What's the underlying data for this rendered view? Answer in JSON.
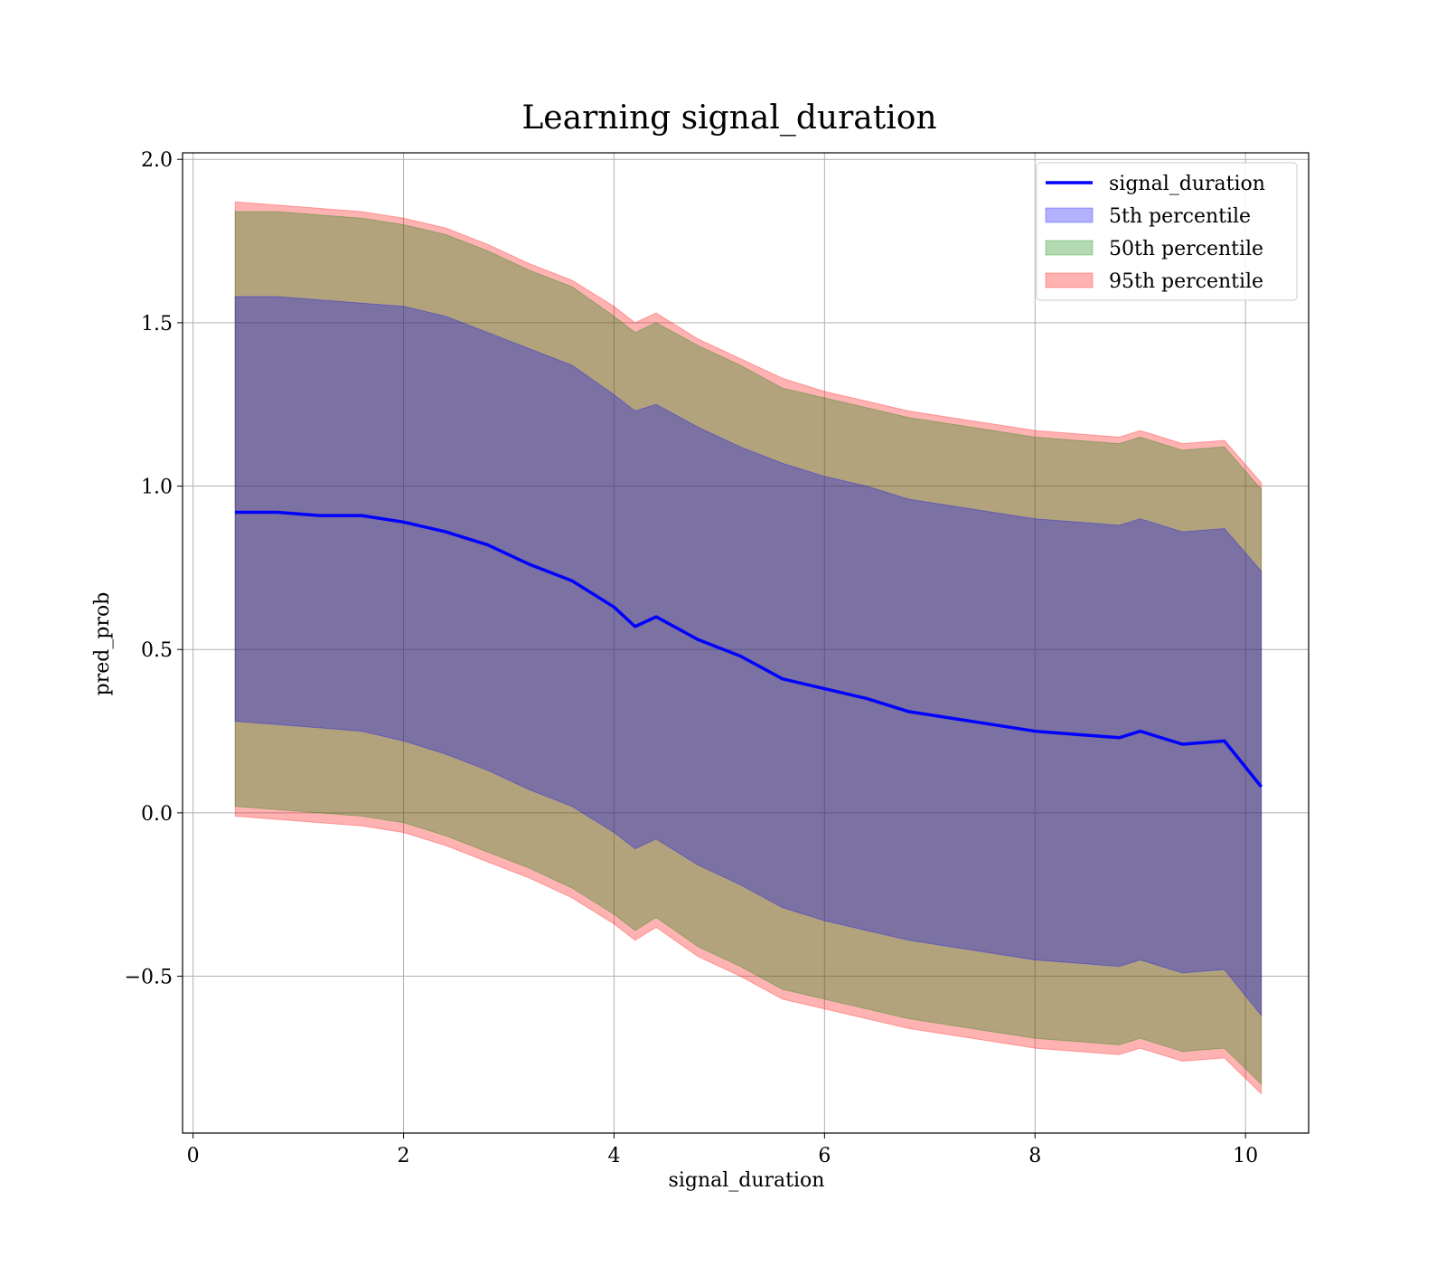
{
  "chart_data": {
    "type": "area",
    "title": "Learning signal_duration",
    "xlabel": "signal_duration",
    "ylabel": "pred_prob",
    "xlim": [
      -0.1,
      10.6
    ],
    "ylim": [
      -0.98,
      2.02
    ],
    "xticks": [
      0,
      2,
      4,
      6,
      8,
      10
    ],
    "xtick_labels": [
      "0",
      "2",
      "4",
      "6",
      "8",
      "10"
    ],
    "yticks": [
      -0.5,
      0.0,
      0.5,
      1.0,
      1.5,
      2.0
    ],
    "ytick_labels": [
      "−0.5",
      "0.0",
      "0.5",
      "1.0",
      "1.5",
      "2.0"
    ],
    "grid": true,
    "legend_position": "top-right",
    "x": [
      0.4,
      0.8,
      1.2,
      1.6,
      2.0,
      2.4,
      2.8,
      3.2,
      3.6,
      4.0,
      4.2,
      4.4,
      4.8,
      5.2,
      5.6,
      6.0,
      6.4,
      6.8,
      7.2,
      7.6,
      8.0,
      8.4,
      8.8,
      9.0,
      9.4,
      9.8,
      10.15
    ],
    "series": [
      {
        "name": "signal_duration",
        "kind": "line",
        "color": "#0000ff",
        "values": [
          0.92,
          0.92,
          0.91,
          0.91,
          0.89,
          0.86,
          0.82,
          0.76,
          0.71,
          0.63,
          0.57,
          0.6,
          0.53,
          0.48,
          0.41,
          0.38,
          0.35,
          0.31,
          0.29,
          0.27,
          0.25,
          0.24,
          0.23,
          0.25,
          0.21,
          0.22,
          0.08
        ]
      },
      {
        "name": "5th percentile",
        "kind": "band",
        "color": "#0000ff",
        "lower": [
          0.28,
          0.27,
          0.26,
          0.25,
          0.22,
          0.18,
          0.13,
          0.07,
          0.02,
          -0.06,
          -0.11,
          -0.08,
          -0.16,
          -0.22,
          -0.29,
          -0.33,
          -0.36,
          -0.39,
          -0.41,
          -0.43,
          -0.45,
          -0.46,
          -0.47,
          -0.45,
          -0.49,
          -0.48,
          -0.62
        ],
        "upper": [
          1.58,
          1.58,
          1.57,
          1.56,
          1.55,
          1.52,
          1.47,
          1.42,
          1.37,
          1.28,
          1.23,
          1.25,
          1.18,
          1.12,
          1.07,
          1.03,
          1.0,
          0.96,
          0.94,
          0.92,
          0.9,
          0.89,
          0.88,
          0.9,
          0.86,
          0.87,
          0.74
        ]
      },
      {
        "name": "50th percentile",
        "kind": "band",
        "color": "#008000",
        "lower": [
          0.02,
          0.01,
          0.0,
          -0.01,
          -0.03,
          -0.07,
          -0.12,
          -0.17,
          -0.23,
          -0.31,
          -0.36,
          -0.32,
          -0.41,
          -0.47,
          -0.54,
          -0.57,
          -0.6,
          -0.63,
          -0.65,
          -0.67,
          -0.69,
          -0.7,
          -0.71,
          -0.69,
          -0.73,
          -0.72,
          -0.83
        ],
        "upper": [
          1.84,
          1.84,
          1.83,
          1.82,
          1.8,
          1.77,
          1.72,
          1.66,
          1.61,
          1.52,
          1.47,
          1.5,
          1.43,
          1.37,
          1.3,
          1.27,
          1.24,
          1.21,
          1.19,
          1.17,
          1.15,
          1.14,
          1.13,
          1.15,
          1.11,
          1.12,
          0.99
        ]
      },
      {
        "name": "95th percentile",
        "kind": "band",
        "color": "#ff0000",
        "lower": [
          -0.01,
          -0.02,
          -0.03,
          -0.04,
          -0.06,
          -0.1,
          -0.15,
          -0.2,
          -0.26,
          -0.34,
          -0.39,
          -0.35,
          -0.44,
          -0.5,
          -0.57,
          -0.6,
          -0.63,
          -0.66,
          -0.68,
          -0.7,
          -0.72,
          -0.73,
          -0.74,
          -0.72,
          -0.76,
          -0.75,
          -0.86
        ],
        "upper": [
          1.87,
          1.86,
          1.85,
          1.84,
          1.82,
          1.79,
          1.74,
          1.68,
          1.63,
          1.55,
          1.5,
          1.53,
          1.45,
          1.39,
          1.33,
          1.29,
          1.26,
          1.23,
          1.21,
          1.19,
          1.17,
          1.16,
          1.15,
          1.17,
          1.13,
          1.14,
          1.01
        ]
      }
    ]
  }
}
